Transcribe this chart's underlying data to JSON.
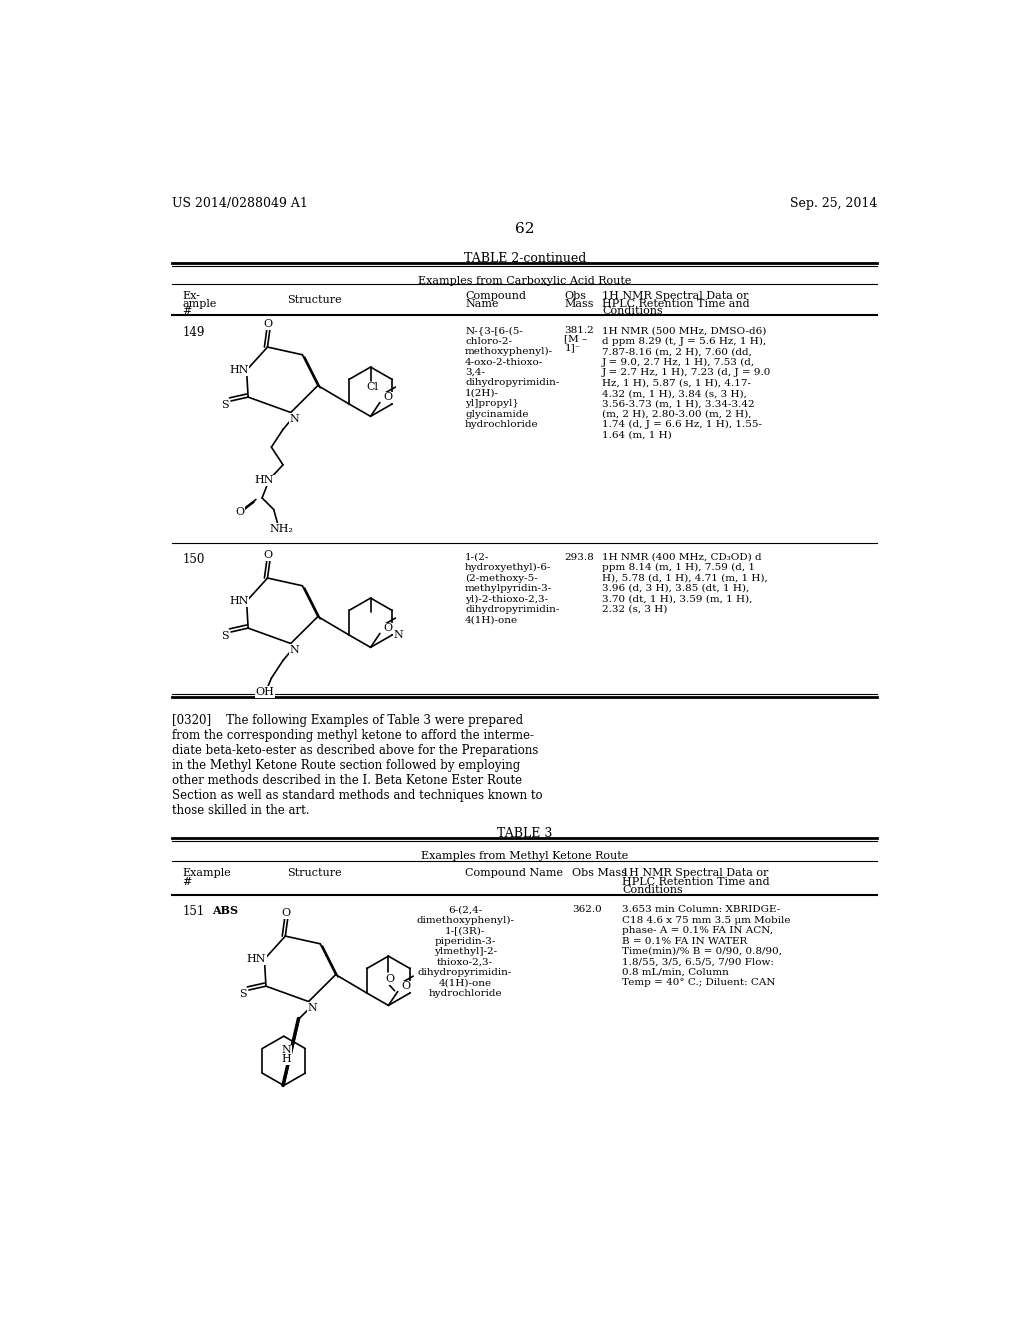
{
  "background_color": "#ffffff",
  "page_header_left": "US 2014/0288049 A1",
  "page_header_right": "Sep. 25, 2014",
  "page_number": "62",
  "table2_title": "TABLE 2-continued",
  "table2_subtitle": "Examples from Carboxylic Acid Route",
  "example_149_num": "149",
  "example_149_name": "N-{3-[6-(5-\nchloro-2-\nmethoxyphenyl)-\n4-oxo-2-thioxo-\n3,4-\ndihydropyrimidin-\n1(2H)-\nyl]propyl}\nglycinamide\nhydrochloride",
  "example_149_mass": "381.2\n[M –\n1]⁻",
  "example_149_nmr": "1H NMR (500 MHz, DMSO-d6)\nd ppm 8.29 (t, J = 5.6 Hz, 1 H),\n7.87-8.16 (m, 2 H), 7.60 (dd,\nJ = 9.0, 2.7 Hz, 1 H), 7.53 (d,\nJ = 2.7 Hz, 1 H), 7.23 (d, J = 9.0\nHz, 1 H), 5.87 (s, 1 H), 4.17-\n4.32 (m, 1 H), 3.84 (s, 3 H),\n3.56-3.73 (m, 1 H), 3.34-3.42\n(m, 2 H), 2.80-3.00 (m, 2 H),\n1.74 (d, J = 6.6 Hz, 1 H), 1.55-\n1.64 (m, 1 H)",
  "example_150_num": "150",
  "example_150_name": "1-(2-\nhydroxyethyl)-6-\n(2-methoxy-5-\nmethylpyridin-3-\nyl)-2-thioxo-2,3-\ndihydropyrimidin-\n4(1H)-one",
  "example_150_mass": "293.8",
  "example_150_nmr": "1H NMR (400 MHz, CD₃OD) d\nppm 8.14 (m, 1 H), 7.59 (d, 1\nH), 5.78 (d, 1 H), 4.71 (m, 1 H),\n3.96 (d, 3 H), 3.85 (dt, 1 H),\n3.70 (dt, 1 H), 3.59 (m, 1 H),\n2.32 (s, 3 H)",
  "paragraph_0320": "[0320]    The following Examples of Table 3 were prepared\nfrom the corresponding methyl ketone to afford the interme-\ndiate beta-keto-ester as described above for the Preparations\nin the Methyl Ketone Route section followed by employing\nother methods described in the I. Beta Ketone Ester Route\nSection as well as standard methods and techniques known to\nthose skilled in the art.",
  "table3_title": "TABLE 3",
  "table3_subtitle": "Examples from Methyl Ketone Route",
  "example_151_num": "151",
  "example_151_abs": "ABS",
  "example_151_name": "6-(2,4-\ndimethoxyphenyl)-\n1-[(3R)-\npiperidin-3-\nylmethyl]-2-\nthioxo-2,3-\ndihydropyrimidin-\n4(1H)-one\nhydrochloride",
  "example_151_mass": "362.0",
  "example_151_nmr": "3.653 min Column: XBRIDGE-\nC18 4.6 x 75 mm 3.5 μm Mobile\nphase- A = 0.1% FA IN ACN,\nB = 0.1% FA IN WATER\nTime(min)/% B = 0/90, 0.8/90,\n1.8/55, 3/5, 6.5/5, 7/90 Flow:\n0.8 mL/min, Column\nTemp = 40° C.; Diluent: CAN"
}
